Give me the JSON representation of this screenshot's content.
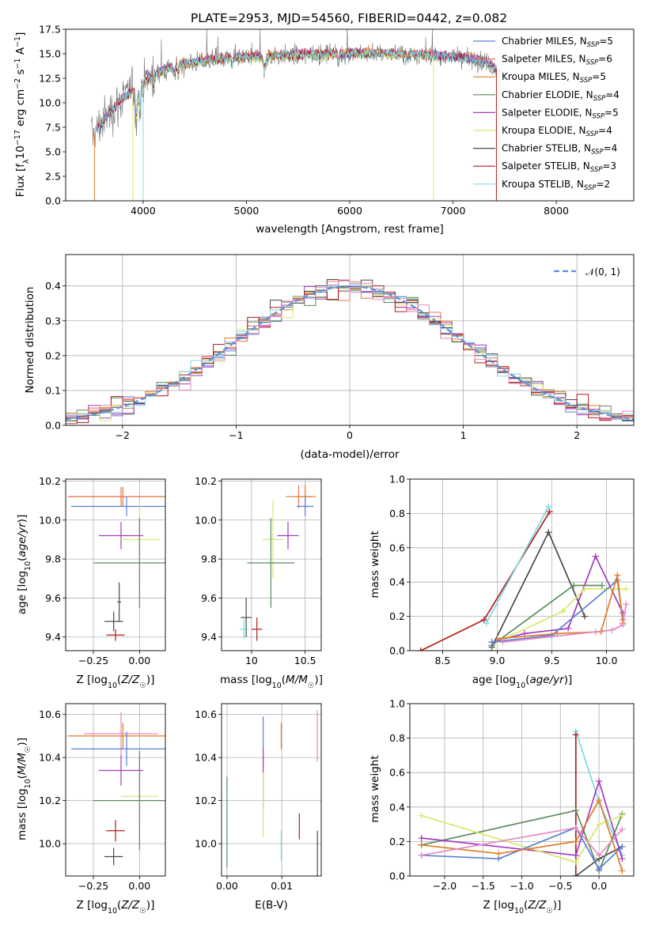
{
  "title": "PLATE=2953, MJD=54560, FIBERID=0442, z=0.082",
  "colors": {
    "chabrier_miles": "#5b7fd6",
    "salpeter_miles": "#e8735a",
    "kroupa_miles": "#e07b24",
    "chabrier_elodie": "#5c8a5e",
    "salpeter_elodie": "#a33bbf",
    "kroupa_elodie": "#d6e86a",
    "chabrier_stelib": "#4a4a4a",
    "salpeter_stelib": "#b01c1c",
    "kroupa_stelib": "#7fd8e0",
    "pink": "#e38ac4",
    "data_gray": "#808080"
  },
  "chart_data": [
    {
      "type": "line",
      "xlabel": "wavelength [Angstrom, rest frame]",
      "ylabel": "Flux [f_λ10^-17 erg cm^-2 s^-1 A^-1]",
      "xlim": [
        3250,
        8750
      ],
      "ylim": [
        0,
        17.5
      ],
      "xticks": [
        "4000",
        "5000",
        "6000",
        "7000",
        "8000"
      ],
      "yticks": [
        "0.0",
        "2.5",
        "5.0",
        "7.5",
        "10.0",
        "12.5",
        "15.0",
        "17.5"
      ],
      "legend_position": "right",
      "legend": [
        {
          "label": "Chabrier MILES, N",
          "sub": "SSP",
          "tail": "=5",
          "color": "chabrier_miles"
        },
        {
          "label": "Salpeter MILES, N",
          "sub": "SSP",
          "tail": "=6",
          "color": "salpeter_miles"
        },
        {
          "label": "Kroupa MILES, N",
          "sub": "SSP",
          "tail": "=5",
          "color": "kroupa_miles"
        },
        {
          "label": "Chabrier ELODIE, N",
          "sub": "SSP",
          "tail": "=4",
          "color": "chabrier_elodie"
        },
        {
          "label": "Salpeter ELODIE, N",
          "sub": "SSP",
          "tail": "=5",
          "color": "salpeter_elodie"
        },
        {
          "label": "Kroupa ELODIE, N",
          "sub": "SSP",
          "tail": "=4",
          "color": "kroupa_elodie"
        },
        {
          "label": "Chabrier STELIB, N",
          "sub": "SSP",
          "tail": "=4",
          "color": "chabrier_stelib"
        },
        {
          "label": "Salpeter STELIB, N",
          "sub": "SSP",
          "tail": "=3",
          "color": "salpeter_stelib"
        },
        {
          "label": "Kroupa STELIB, N",
          "sub": "SSP",
          "tail": "=2",
          "color": "kroupa_stelib"
        }
      ],
      "spectrum_anchors": {
        "x": [
          3500,
          3600,
          3800,
          3950,
          4050,
          4300,
          4600,
          4900,
          5200,
          5500,
          5800,
          6100,
          6400,
          6700,
          7000,
          7300,
          7420
        ],
        "y": [
          6.5,
          8.0,
          10.5,
          11.5,
          12.5,
          13.8,
          14.3,
          14.6,
          14.8,
          14.9,
          15.0,
          15.1,
          15.0,
          14.9,
          14.7,
          14.3,
          13.5
        ]
      }
    },
    {
      "type": "line",
      "xlabel": "(data-model)/error",
      "ylabel": "Normed distribution",
      "xlim": [
        -2.5,
        2.5
      ],
      "ylim": [
        0,
        0.49
      ],
      "xticks": [
        "−2",
        "−1",
        "0",
        "1",
        "2"
      ],
      "yticks": [
        "0.0",
        "0.1",
        "0.2",
        "0.3",
        "0.4"
      ],
      "grid": true,
      "legend_position": "top-right",
      "legend": [
        {
          "label": "𝒩(0, 1)",
          "color": "#5b8fd6",
          "style": "dashed"
        }
      ]
    },
    {
      "type": "scatter",
      "xlabel": "Z [log10(Z/Z☉)]",
      "ylabel": "age [log10(age/yr)]",
      "xlim": [
        -0.4,
        0.14
      ],
      "ylim": [
        9.33,
        10.21
      ],
      "xticks": [
        "−0.25",
        "0.00"
      ],
      "yticks": [
        "9.4",
        "9.6",
        "9.8",
        "10.0",
        "10.2"
      ],
      "grid": true,
      "points": [
        {
          "x": -0.09,
          "y": 10.12,
          "xerr": 0.3,
          "yerr": 0.05,
          "color": "kroupa_miles"
        },
        {
          "x": -0.1,
          "y": 10.12,
          "xerr": 0.28,
          "yerr": 0.05,
          "color": "salpeter_miles"
        },
        {
          "x": -0.07,
          "y": 10.07,
          "xerr": 0.3,
          "yerr": 0.05,
          "color": "chabrier_miles"
        },
        {
          "x": -0.1,
          "y": 9.92,
          "xerr": 0.12,
          "yerr": 0.07,
          "color": "salpeter_elodie"
        },
        {
          "x": 0.0,
          "y": 9.9,
          "xerr": 0.11,
          "yerr": 0.2,
          "color": "kroupa_elodie"
        },
        {
          "x": 0.0,
          "y": 9.78,
          "xerr": 0.25,
          "yerr": 0.23,
          "color": "chabrier_elodie"
        },
        {
          "x": -0.11,
          "y": 9.58,
          "xerr": 0.01,
          "yerr": 0.1,
          "color": "chabrier_stelib"
        },
        {
          "x": -0.14,
          "y": 9.48,
          "xerr": 0.05,
          "yerr": 0.05,
          "color": "chabrier_stelib"
        },
        {
          "x": -0.13,
          "y": 9.41,
          "xerr": 0.05,
          "yerr": 0.03,
          "color": "salpeter_stelib"
        }
      ]
    },
    {
      "type": "scatter",
      "xlabel": "mass [log10(M/M☉)]",
      "ylabel": "",
      "xlim": [
        9.72,
        10.65
      ],
      "ylim": [
        9.33,
        10.21
      ],
      "xticks": [
        "10",
        "10.5"
      ],
      "yticks": [
        "9.4",
        "9.6",
        "9.8",
        "10.0",
        "10.2"
      ],
      "grid": true,
      "points": [
        {
          "x": 10.44,
          "y": 10.12,
          "xerr": 0.12,
          "yerr": 0.06,
          "color": "salpeter_miles"
        },
        {
          "x": 10.5,
          "y": 10.12,
          "xerr": 0.1,
          "yerr": 0.06,
          "color": "kroupa_miles"
        },
        {
          "x": 10.5,
          "y": 10.07,
          "xerr": 0.08,
          "yerr": 0.05,
          "color": "chabrier_miles"
        },
        {
          "x": 10.34,
          "y": 9.92,
          "xerr": 0.1,
          "yerr": 0.07,
          "color": "salpeter_elodie"
        },
        {
          "x": 10.2,
          "y": 9.9,
          "xerr": 0.1,
          "yerr": 0.2,
          "color": "kroupa_elodie"
        },
        {
          "x": 10.18,
          "y": 9.78,
          "xerr": 0.22,
          "yerr": 0.23,
          "color": "chabrier_elodie"
        },
        {
          "x": 9.95,
          "y": 9.5,
          "xerr": 0.05,
          "yerr": 0.1,
          "color": "chabrier_stelib"
        },
        {
          "x": 10.05,
          "y": 9.44,
          "xerr": 0.05,
          "yerr": 0.06,
          "color": "salpeter_stelib"
        },
        {
          "x": 9.93,
          "y": 9.44,
          "xerr": 0.04,
          "yerr": 0.05,
          "color": "kroupa_stelib"
        }
      ]
    },
    {
      "type": "line",
      "xlabel": "age [log10(age/yr)]",
      "ylabel": "mass weight",
      "xlim": [
        8.2,
        10.25
      ],
      "ylim": [
        0,
        1.0
      ],
      "xticks": [
        "8.5",
        "9.0",
        "9.5",
        "10.0"
      ],
      "yticks": [
        "0.0",
        "0.2",
        "0.4",
        "0.6",
        "0.8",
        "1.0"
      ],
      "grid": true,
      "series": [
        {
          "color": "salpeter_stelib",
          "x": [
            8.3,
            8.88,
            9.48
          ],
          "y": [
            0.0,
            0.18,
            0.81
          ]
        },
        {
          "color": "kroupa_stelib",
          "x": [
            8.9,
            9.47
          ],
          "y": [
            0.16,
            0.84
          ]
        },
        {
          "color": "chabrier_stelib",
          "x": [
            8.95,
            9.47,
            9.8
          ],
          "y": [
            0.02,
            0.69,
            0.2
          ]
        },
        {
          "color": "chabrier_elodie",
          "x": [
            8.95,
            9.7,
            9.96
          ],
          "y": [
            0.03,
            0.38,
            0.38
          ]
        },
        {
          "color": "salpeter_elodie",
          "x": [
            8.95,
            9.25,
            9.65,
            9.9,
            10.15
          ],
          "y": [
            0.05,
            0.1,
            0.13,
            0.55,
            0.22
          ]
        },
        {
          "color": "kroupa_elodie",
          "x": [
            9.0,
            9.6,
            9.8,
            10.18
          ],
          "y": [
            0.05,
            0.23,
            0.36,
            0.36
          ]
        },
        {
          "color": "chabrier_miles",
          "x": [
            8.95,
            9.5,
            10.1,
            10.15
          ],
          "y": [
            0.05,
            0.09,
            0.41,
            0.18
          ]
        },
        {
          "color": "kroupa_miles",
          "x": [
            9.0,
            9.55,
            9.95,
            10.1,
            10.15
          ],
          "y": [
            0.07,
            0.1,
            0.11,
            0.44,
            0.16
          ]
        },
        {
          "color": "pink",
          "x": [
            9.05,
            9.9,
            10.05,
            10.15,
            10.18
          ],
          "y": [
            0.05,
            0.11,
            0.12,
            0.15,
            0.27
          ]
        }
      ]
    },
    {
      "type": "scatter",
      "xlabel": "Z [log10(Z/Z☉)]",
      "ylabel": "mass [log10(M/M☉)]",
      "xlim": [
        -0.4,
        0.14
      ],
      "ylim": [
        9.85,
        10.65
      ],
      "xticks": [
        "−0.25",
        "0.00"
      ],
      "yticks": [
        "10.0",
        "10.2",
        "10.4",
        "10.6"
      ],
      "grid": true,
      "points": [
        {
          "x": -0.09,
          "y": 10.5,
          "xerr": 0.3,
          "yerr": 0.06,
          "color": "kroupa_miles"
        },
        {
          "x": -0.1,
          "y": 10.51,
          "xerr": 0.2,
          "yerr": 0.1,
          "color": "pink"
        },
        {
          "x": -0.07,
          "y": 10.44,
          "xerr": 0.3,
          "yerr": 0.08,
          "color": "chabrier_miles"
        },
        {
          "x": -0.1,
          "y": 10.34,
          "xerr": 0.12,
          "yerr": 0.07,
          "color": "salpeter_elodie"
        },
        {
          "x": 0.0,
          "y": 10.22,
          "xerr": 0.1,
          "yerr": 0.1,
          "color": "kroupa_elodie"
        },
        {
          "x": 0.0,
          "y": 10.2,
          "xerr": 0.25,
          "yerr": 0.23,
          "color": "chabrier_elodie"
        },
        {
          "x": -0.13,
          "y": 10.06,
          "xerr": 0.05,
          "yerr": 0.05,
          "color": "salpeter_stelib"
        },
        {
          "x": -0.14,
          "y": 9.94,
          "xerr": 0.05,
          "yerr": 0.04,
          "color": "chabrier_stelib"
        }
      ]
    },
    {
      "type": "scatter",
      "xlabel": "E(B-V)",
      "ylabel": "",
      "xlim": [
        -0.001,
        0.0172
      ],
      "ylim": [
        9.85,
        10.65
      ],
      "xticks": [
        "0.00",
        "0.01"
      ],
      "yticks": [
        "10.0",
        "10.2",
        "10.4",
        "10.6"
      ],
      "grid": true,
      "points": [
        {
          "x": 0.0,
          "y": 10.1,
          "yerr": 0.21,
          "color": "chabrier_elodie"
        },
        {
          "x": 0.0066,
          "y": 10.47,
          "yerr": 0.12,
          "color": "chabrier_miles"
        },
        {
          "x": 0.0066,
          "y": 10.3,
          "yerr": 0.14,
          "color": "salpeter_elodie"
        },
        {
          "x": 0.0066,
          "y": 10.18,
          "yerr": 0.15,
          "color": "kroupa_elodie"
        },
        {
          "x": 0.0099,
          "y": 10.5,
          "yerr": 0.06,
          "color": "kroupa_miles"
        },
        {
          "x": 0.0099,
          "y": 9.99,
          "yerr": 0.07,
          "color": "kroupa_stelib"
        },
        {
          "x": 0.0132,
          "y": 10.08,
          "yerr": 0.06,
          "color": "salpeter_stelib"
        },
        {
          "x": 0.0165,
          "y": 10.5,
          "yerr": 0.12,
          "color": "pink"
        },
        {
          "x": 0.0165,
          "y": 9.94,
          "yerr": 0.12,
          "color": "chabrier_stelib"
        }
      ]
    },
    {
      "type": "line",
      "xlabel": "Z [log10(Z/Z☉)]",
      "ylabel": "mass weight",
      "xlim": [
        -2.45,
        0.45
      ],
      "ylim": [
        0,
        1.0
      ],
      "xticks": [
        "−2.0",
        "−1.5",
        "−1.0",
        "−0.5",
        "0.0"
      ],
      "yticks": [
        "0.0",
        "0.2",
        "0.4",
        "0.6",
        "0.8",
        "1.0"
      ],
      "grid": true,
      "series": [
        {
          "color": "kroupa_stelib",
          "x": [
            -0.3,
            0.0,
            0.3
          ],
          "y": [
            0.84,
            0.43,
            0.12
          ]
        },
        {
          "color": "salpeter_stelib",
          "x": [
            -0.3,
            -0.3
          ],
          "y": [
            0.0,
            0.82
          ]
        },
        {
          "color": "chabrier_stelib",
          "x": [
            -0.3,
            0.0,
            0.3
          ],
          "y": [
            0.0,
            0.1,
            0.17
          ]
        },
        {
          "color": "chabrier_elodie",
          "x": [
            -2.3,
            -0.3,
            0.0,
            0.3
          ],
          "y": [
            0.18,
            0.38,
            0.03,
            0.36
          ]
        },
        {
          "color": "salpeter_elodie",
          "x": [
            -2.3,
            -0.3,
            0.0,
            0.3
          ],
          "y": [
            0.22,
            0.12,
            0.55,
            0.1
          ]
        },
        {
          "color": "kroupa_elodie",
          "x": [
            -2.3,
            -0.3,
            0.0,
            0.3
          ],
          "y": [
            0.35,
            0.08,
            0.3,
            0.35
          ]
        },
        {
          "color": "chabrier_miles",
          "x": [
            -2.3,
            -1.3,
            -0.3,
            0.0,
            0.3
          ],
          "y": [
            0.12,
            0.1,
            0.28,
            0.04,
            0.17
          ]
        },
        {
          "color": "kroupa_miles",
          "x": [
            -2.3,
            -1.3,
            -0.3,
            0.0,
            0.3
          ],
          "y": [
            0.18,
            0.13,
            0.2,
            0.44,
            0.03
          ]
        },
        {
          "color": "pink",
          "x": [
            -2.3,
            -0.3,
            0.0,
            0.3
          ],
          "y": [
            0.12,
            0.28,
            0.12,
            0.27
          ]
        }
      ]
    }
  ]
}
